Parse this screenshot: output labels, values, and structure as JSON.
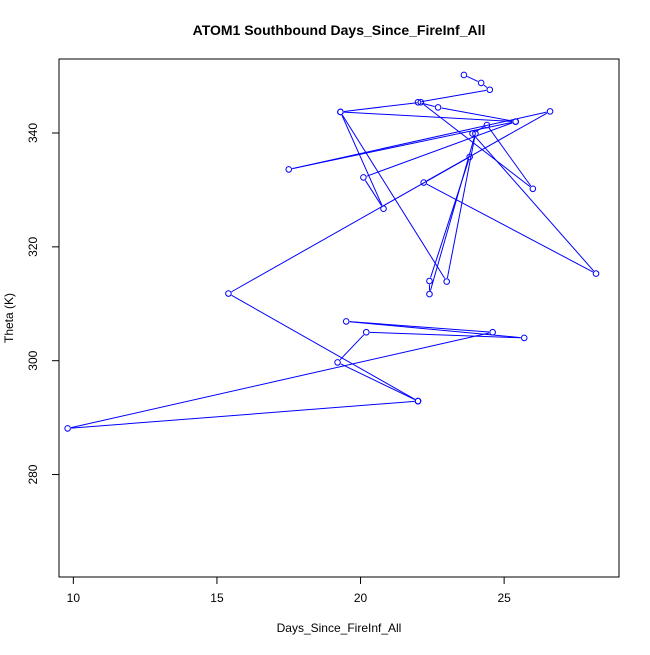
{
  "chart_data": {
    "type": "line",
    "title": "ATOM1 Southbound Days_Since_FireInf_All",
    "xlabel": "Days_Since_FireInf_All",
    "ylabel": "Theta (K)",
    "xlim": [
      9.5,
      29.0
    ],
    "ylim": [
      262.0,
      353.0
    ],
    "x_ticks": [
      10,
      15,
      20,
      25
    ],
    "y_ticks": [
      280,
      300,
      320,
      340
    ],
    "series": [
      {
        "color": "#0000ff",
        "marker": "open-circle",
        "points": [
          [
            23.6,
            350.2
          ],
          [
            24.2,
            348.8
          ],
          [
            24.5,
            347.6
          ],
          [
            22.0,
            345.4
          ],
          [
            22.7,
            344.5
          ],
          [
            25.4,
            342.0
          ],
          [
            19.3,
            343.7
          ],
          [
            22.1,
            345.4
          ],
          [
            26.0,
            330.2
          ],
          [
            24.4,
            341.4
          ],
          [
            23.9,
            339.9
          ],
          [
            28.2,
            315.3
          ],
          [
            22.2,
            331.3
          ],
          [
            26.6,
            343.8
          ],
          [
            17.5,
            333.6
          ],
          [
            25.4,
            342.0
          ],
          [
            20.1,
            332.2
          ],
          [
            20.8,
            326.7
          ],
          [
            19.3,
            343.7
          ],
          [
            23.0,
            313.9
          ],
          [
            24.0,
            339.9
          ],
          [
            22.4,
            311.7
          ],
          [
            22.4,
            314.0
          ],
          [
            23.8,
            335.8
          ],
          [
            15.4,
            311.8
          ],
          [
            22.0,
            292.9
          ],
          [
            9.8,
            288.1
          ],
          [
            24.6,
            305.0
          ],
          [
            19.5,
            306.9
          ],
          [
            25.7,
            304.0
          ],
          [
            20.2,
            305.0
          ],
          [
            19.2,
            299.7
          ],
          [
            22.0,
            292.9
          ]
        ]
      }
    ]
  }
}
